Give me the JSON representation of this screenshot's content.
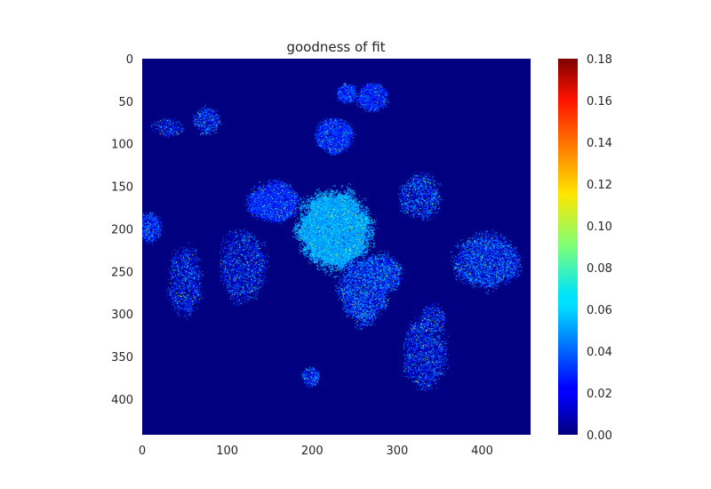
{
  "chart_data": {
    "type": "heatmap",
    "title": "goodness of fit",
    "xlabel": "",
    "ylabel": "",
    "xlim": [
      0,
      457
    ],
    "ylim": [
      442,
      0
    ],
    "x_ticks": [
      0,
      100,
      200,
      300,
      400
    ],
    "y_ticks": [
      0,
      50,
      100,
      150,
      200,
      250,
      300,
      350,
      400
    ],
    "colorbar": {
      "colormap": "jet",
      "range": [
        0.0,
        0.18
      ],
      "ticks": [
        "0.00",
        "0.02",
        "0.04",
        "0.06",
        "0.08",
        "0.10",
        "0.12",
        "0.14",
        "0.16",
        "0.18"
      ]
    },
    "grid": false,
    "background_value": 0.0,
    "blobs": [
      {
        "cx": 225,
        "cy": 200,
        "rx": 44,
        "ry": 48,
        "value": 0.052,
        "noise": 0.01,
        "density": 0.98
      },
      {
        "cx": 260,
        "cy": 270,
        "rx": 30,
        "ry": 40,
        "value": 0.028,
        "noise": 0.03,
        "density": 0.92
      },
      {
        "cx": 283,
        "cy": 250,
        "rx": 22,
        "ry": 22,
        "value": 0.03,
        "noise": 0.03,
        "density": 0.9
      },
      {
        "cx": 153,
        "cy": 168,
        "rx": 30,
        "ry": 24,
        "value": 0.03,
        "noise": 0.015,
        "density": 0.96
      },
      {
        "cx": 118,
        "cy": 243,
        "rx": 28,
        "ry": 42,
        "value": 0.022,
        "noise": 0.03,
        "density": 0.75
      },
      {
        "cx": 50,
        "cy": 260,
        "rx": 20,
        "ry": 40,
        "value": 0.022,
        "noise": 0.03,
        "density": 0.78
      },
      {
        "cx": 8,
        "cy": 197,
        "rx": 14,
        "ry": 18,
        "value": 0.03,
        "noise": 0.02,
        "density": 0.85
      },
      {
        "cx": 405,
        "cy": 237,
        "rx": 38,
        "ry": 32,
        "value": 0.028,
        "noise": 0.03,
        "density": 0.88
      },
      {
        "cx": 327,
        "cy": 162,
        "rx": 24,
        "ry": 26,
        "value": 0.025,
        "noise": 0.035,
        "density": 0.82
      },
      {
        "cx": 332,
        "cy": 345,
        "rx": 26,
        "ry": 40,
        "value": 0.022,
        "noise": 0.03,
        "density": 0.8
      },
      {
        "cx": 342,
        "cy": 305,
        "rx": 14,
        "ry": 16,
        "value": 0.022,
        "noise": 0.03,
        "density": 0.8
      },
      {
        "cx": 225,
        "cy": 90,
        "rx": 22,
        "ry": 20,
        "value": 0.03,
        "noise": 0.015,
        "density": 0.94
      },
      {
        "cx": 240,
        "cy": 40,
        "rx": 12,
        "ry": 12,
        "value": 0.03,
        "noise": 0.015,
        "density": 0.92
      },
      {
        "cx": 270,
        "cy": 44,
        "rx": 18,
        "ry": 16,
        "value": 0.03,
        "noise": 0.015,
        "density": 0.93
      },
      {
        "cx": 75,
        "cy": 72,
        "rx": 16,
        "ry": 16,
        "value": 0.025,
        "noise": 0.03,
        "density": 0.85
      },
      {
        "cx": 30,
        "cy": 80,
        "rx": 18,
        "ry": 10,
        "value": 0.022,
        "noise": 0.03,
        "density": 0.75
      },
      {
        "cx": 198,
        "cy": 373,
        "rx": 10,
        "ry": 12,
        "value": 0.03,
        "noise": 0.025,
        "density": 0.88
      }
    ]
  }
}
